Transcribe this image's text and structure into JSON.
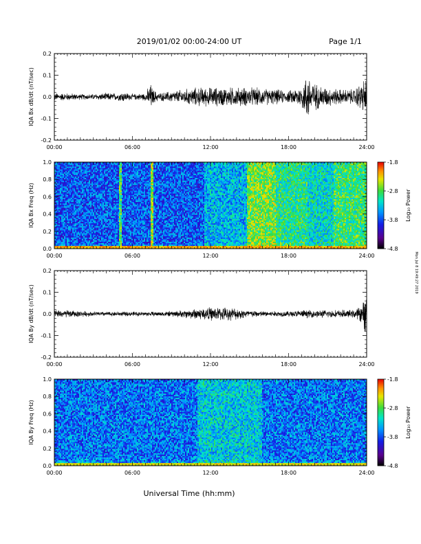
{
  "header": {
    "title": "2019/01/02  00:00-24:00 UT",
    "page": "Page 1/1"
  },
  "footer": {
    "xlabel": "Universal Time (hh:mm)",
    "side_note": "Mon Jul  8 19:49:27 2019"
  },
  "chart_data": [
    {
      "type": "line",
      "ylabel": "IQA Bx dB/dt (nT/sec)",
      "xlim": [
        0,
        24
      ],
      "ylim": [
        -0.2,
        0.2
      ],
      "xticks": [
        "00:00",
        "06:00",
        "12:00",
        "18:00",
        "24:00"
      ],
      "yticks": [
        -0.2,
        -0.1,
        0.0,
        0.1,
        0.2
      ],
      "series": [
        {
          "x": [
            0,
            1,
            2,
            3,
            4,
            5,
            5.1,
            6,
            7,
            7.4,
            7.6,
            8,
            9,
            10,
            11,
            12,
            13,
            14,
            15,
            16,
            17,
            18,
            19,
            19.5,
            20,
            21,
            22,
            23,
            23.8,
            24
          ],
          "y_envelope": [
            0.02,
            0.02,
            0.015,
            0.015,
            0.02,
            0.02,
            0.03,
            0.015,
            0.02,
            0.07,
            0.04,
            0.02,
            0.03,
            0.04,
            0.05,
            0.05,
            0.05,
            0.05,
            0.05,
            0.045,
            0.04,
            0.03,
            0.06,
            0.13,
            0.07,
            0.05,
            0.04,
            0.04,
            0.09,
            0.1
          ]
        }
      ]
    },
    {
      "type": "heatmap",
      "ylabel": "IQA Bx Freq (Hz)",
      "xlim": [
        0,
        24
      ],
      "ylim": [
        0.0,
        1.0
      ],
      "xticks": [
        "00:00",
        "06:00",
        "12:00",
        "18:00",
        "24:00"
      ],
      "yticks": [
        "0.0",
        "0.2",
        "0.4",
        "0.6",
        "0.8",
        "1.0"
      ],
      "colorbar": {
        "label": "Log₁₀ Power",
        "ticks": [
          "-1.8",
          "-2.8",
          "-3.8",
          "-4.8"
        ],
        "range": [
          -4.8,
          -1.8
        ]
      },
      "base_level": -3.75,
      "bands": [
        {
          "t0": 5.0,
          "t1": 5.2,
          "level": -2.8
        },
        {
          "t0": 7.4,
          "t1": 7.6,
          "level": -2.6
        },
        {
          "t0": 11.5,
          "t1": 14.8,
          "level": -3.4
        },
        {
          "t0": 14.8,
          "t1": 17.0,
          "level": -2.7
        },
        {
          "t0": 17.0,
          "t1": 19.5,
          "level": -3.0
        },
        {
          "t0": 19.5,
          "t1": 21.5,
          "level": -3.2
        },
        {
          "t0": 21.5,
          "t1": 24.0,
          "level": -2.9
        }
      ],
      "low_freq_level": -2.4
    },
    {
      "type": "line",
      "ylabel": "IQA By dB/dt (nT/sec)",
      "xlim": [
        0,
        24
      ],
      "ylim": [
        -0.2,
        0.2
      ],
      "xticks": [
        "00:00",
        "06:00",
        "12:00",
        "18:00",
        "24:00"
      ],
      "yticks": [
        -0.2,
        -0.1,
        0.0,
        0.1,
        0.2
      ],
      "series": [
        {
          "x": [
            0,
            1,
            2,
            3,
            4,
            5,
            6,
            7,
            8,
            9,
            10,
            11,
            12,
            13,
            14,
            15,
            16,
            17,
            18,
            19,
            20,
            21,
            22,
            23,
            23.7,
            24
          ],
          "y_envelope": [
            0.02,
            0.02,
            0.015,
            0.012,
            0.012,
            0.012,
            0.012,
            0.012,
            0.012,
            0.015,
            0.02,
            0.03,
            0.035,
            0.035,
            0.03,
            0.02,
            0.015,
            0.015,
            0.015,
            0.02,
            0.02,
            0.02,
            0.02,
            0.02,
            0.05,
            0.14
          ]
        }
      ]
    },
    {
      "type": "heatmap",
      "ylabel": "IQA By Freq (Hz)",
      "xlim": [
        0,
        24
      ],
      "ylim": [
        0.0,
        1.0
      ],
      "xticks": [
        "00:00",
        "06:00",
        "12:00",
        "18:00",
        "24:00"
      ],
      "yticks": [
        "0.0",
        "0.2",
        "0.4",
        "0.6",
        "0.8",
        "1.0"
      ],
      "colorbar": {
        "label": "Log₁₀ Power",
        "ticks": [
          "-1.8",
          "-2.8",
          "-3.8",
          "-4.8"
        ],
        "range": [
          -4.8,
          -1.8
        ]
      },
      "base_level": -3.65,
      "bands": [
        {
          "t0": 11.0,
          "t1": 16.0,
          "level": -3.3
        }
      ],
      "low_freq_level": -2.6
    }
  ]
}
